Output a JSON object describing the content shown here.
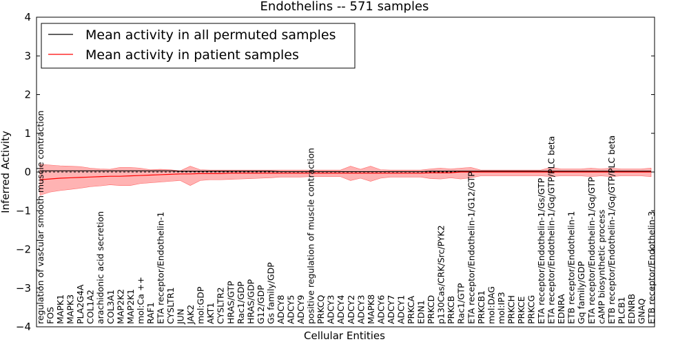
{
  "chart_data": {
    "type": "line",
    "title": "Endothelins -- 571 samples",
    "xlabel": "Cellular Entities",
    "ylabel": "Inferred Activity",
    "ylim": [
      -4,
      4
    ],
    "yticks": [
      -4,
      -3,
      -2,
      -1,
      0,
      1,
      2,
      3,
      4
    ],
    "grid": false,
    "legend_position": "top-left",
    "colors": {
      "permuted": "#000000",
      "patient": "#ff0000",
      "band": "#ff9999",
      "zero_line": "#000000"
    },
    "categories": [
      "regulation of vascular smooth muscle contraction",
      "FOS",
      "MAPK1",
      "MAPK3",
      "PLA2G4A",
      "COL1A2",
      "arachidonic acid secretion",
      "COL3A1",
      "MAP2K2",
      "MAP2K1",
      "mol:Ca ++",
      "RAF1",
      "ETA receptor/Endothelin-1",
      "CYSLTR1",
      "JUN",
      "JAK2",
      "mol:GDP",
      "AKT1",
      "CYSLTR2",
      "HRAS/GTP",
      "Rac1/GDP",
      "HRAS/GDP",
      "G12/GDP",
      "Gs family/GDP",
      "ADCY8",
      "ADCY5",
      "ADCY9",
      "positive regulation of muscle contraction",
      "PRKCQ",
      "ADCY3",
      "ADCY4",
      "ADCY2",
      "ADCY3",
      "MAPK8",
      "ADCY6",
      "ADCY7",
      "ADCY1",
      "PRKCA",
      "EDN1",
      "PRKCD",
      "p130Cas/CRK/Src/PYK2",
      "PRKCB",
      "Rac1/GTP",
      "ETA receptor/Endothelin-1/G12/GTP",
      "PRKCB1",
      "mol:DAG",
      "mol:IP3",
      "PRKCH",
      "PRKCE",
      "PRKCG",
      "ETA receptor/Endothelin-1/Gs/GTP",
      "ETA receptor/Endothelin-1/Gq/GTP/PLC beta",
      "EDNRA",
      "ETB receptor/Endothelin-1",
      "Gq family/GDP",
      "ETA receptor/Endothelin-1/Gq/GTP",
      "cAMP biosynthetic process",
      "ETB receptor/Endothelin-1/Gq/GTP/PLC beta",
      "PLCB1",
      "EDNRB",
      "GNAQ",
      "ETB receptor/Endothelin-3"
    ],
    "series": [
      {
        "name": "Mean activity in all permuted samples",
        "values": [
          0.03,
          0.03,
          0.03,
          0.03,
          0.03,
          0.03,
          0.03,
          0.03,
          0.03,
          0.03,
          0.03,
          0.03,
          0.03,
          0.03,
          0.02,
          0.02,
          0.02,
          0.02,
          0.02,
          0.02,
          0.02,
          0.02,
          0.02,
          0.02,
          0.01,
          0.01,
          0.01,
          0.01,
          0.01,
          0.01,
          0.01,
          0.01,
          0.01,
          0.01,
          0.01,
          0.01,
          0.01,
          0.01,
          0.01,
          0.02,
          0.02,
          0.02,
          0.02,
          0.02,
          0.02,
          0.02,
          0.02,
          0.02,
          0.02,
          0.02,
          0.02,
          0.02,
          0.02,
          0.02,
          0.02,
          0.02,
          0.02,
          0.02,
          0.02,
          0.02,
          0.02,
          0.02
        ]
      },
      {
        "name": "Mean activity in patient samples",
        "values": [
          -0.2,
          -0.18,
          -0.16,
          -0.15,
          -0.14,
          -0.13,
          -0.12,
          -0.11,
          -0.11,
          -0.1,
          -0.09,
          -0.08,
          -0.07,
          -0.06,
          -0.05,
          -0.05,
          -0.04,
          -0.04,
          -0.04,
          -0.03,
          -0.03,
          -0.03,
          -0.03,
          -0.03,
          -0.03,
          -0.03,
          -0.03,
          -0.03,
          -0.03,
          -0.03,
          -0.03,
          -0.03,
          -0.03,
          -0.03,
          -0.03,
          -0.03,
          -0.03,
          -0.03,
          -0.03,
          -0.02,
          -0.02,
          -0.02,
          0.0,
          0.0,
          0.0,
          0.0,
          0.0,
          0.0,
          0.0,
          0.0,
          0.0,
          0.0,
          0.0,
          0.0,
          0.0,
          0.0,
          0.0,
          0.0,
          0.0,
          0.0,
          0.0,
          0.0
        ]
      }
    ],
    "band": {
      "upper": [
        0.2,
        0.18,
        0.16,
        0.15,
        0.14,
        0.1,
        0.08,
        0.07,
        0.12,
        0.12,
        0.1,
        0.06,
        0.07,
        0.06,
        0.03,
        0.15,
        0.06,
        0.05,
        0.05,
        0.05,
        0.05,
        0.05,
        0.05,
        0.05,
        0.05,
        0.05,
        0.05,
        0.05,
        0.05,
        0.05,
        0.05,
        0.15,
        0.07,
        0.15,
        0.06,
        0.05,
        0.05,
        0.05,
        0.05,
        0.08,
        0.1,
        0.08,
        0.1,
        0.12,
        0.05,
        0.05,
        0.05,
        0.05,
        0.05,
        0.05,
        0.05,
        0.12,
        0.08,
        0.08,
        0.08,
        0.1,
        0.08,
        0.1,
        0.08,
        0.08,
        0.08,
        0.1
      ],
      "lower": [
        -0.6,
        -0.52,
        -0.48,
        -0.45,
        -0.42,
        -0.38,
        -0.36,
        -0.33,
        -0.35,
        -0.35,
        -0.3,
        -0.28,
        -0.26,
        -0.24,
        -0.22,
        -0.35,
        -0.22,
        -0.2,
        -0.2,
        -0.19,
        -0.18,
        -0.17,
        -0.16,
        -0.15,
        -0.13,
        -0.13,
        -0.13,
        -0.12,
        -0.12,
        -0.12,
        -0.12,
        -0.22,
        -0.16,
        -0.24,
        -0.16,
        -0.13,
        -0.13,
        -0.13,
        -0.13,
        -0.17,
        -0.18,
        -0.15,
        -0.18,
        -0.15,
        -0.1,
        -0.1,
        -0.1,
        -0.1,
        -0.1,
        -0.1,
        -0.1,
        -0.12,
        -0.1,
        -0.1,
        -0.1,
        -0.12,
        -0.1,
        -0.12,
        -0.1,
        -0.1,
        -0.1,
        -0.12
      ]
    }
  }
}
